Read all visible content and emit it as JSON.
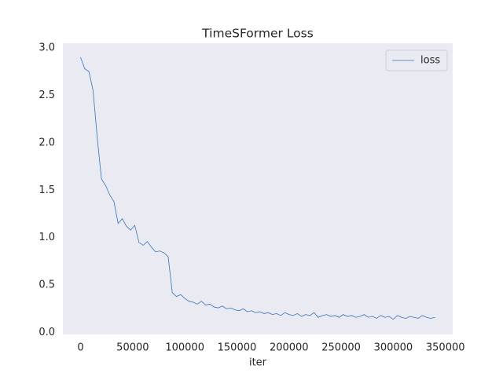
{
  "chart_data": {
    "type": "line",
    "title": "TimeSFormer Loss",
    "xlabel": "iter",
    "x": [
      0,
      4000,
      8000,
      12000,
      16000,
      20000,
      24000,
      28000,
      32000,
      36000,
      40000,
      44000,
      48000,
      52000,
      56000,
      60000,
      64000,
      68000,
      72000,
      76000,
      80000,
      84000,
      88000,
      92000,
      96000,
      100000,
      104000,
      108000,
      112000,
      116000,
      120000,
      124000,
      128000,
      132000,
      136000,
      140000,
      144000,
      148000,
      152000,
      156000,
      160000,
      164000,
      168000,
      172000,
      176000,
      180000,
      184000,
      188000,
      192000,
      196000,
      200000,
      204000,
      208000,
      212000,
      216000,
      220000,
      224000,
      228000,
      232000,
      236000,
      240000,
      244000,
      248000,
      252000,
      256000,
      260000,
      264000,
      268000,
      272000,
      276000,
      280000,
      284000,
      288000,
      292000,
      296000,
      300000,
      304000,
      308000,
      312000,
      316000,
      320000,
      324000,
      328000,
      332000,
      336000,
      340000
    ],
    "series": [
      {
        "name": "loss",
        "color": "#3274b8",
        "values": [
          2.9,
          2.78,
          2.75,
          2.55,
          2.05,
          1.62,
          1.55,
          1.45,
          1.38,
          1.15,
          1.2,
          1.12,
          1.08,
          1.13,
          0.95,
          0.92,
          0.96,
          0.9,
          0.85,
          0.86,
          0.84,
          0.8,
          0.42,
          0.38,
          0.4,
          0.36,
          0.33,
          0.32,
          0.3,
          0.33,
          0.29,
          0.3,
          0.27,
          0.26,
          0.28,
          0.25,
          0.26,
          0.24,
          0.23,
          0.25,
          0.22,
          0.23,
          0.21,
          0.22,
          0.2,
          0.21,
          0.19,
          0.2,
          0.18,
          0.21,
          0.19,
          0.18,
          0.2,
          0.17,
          0.19,
          0.18,
          0.21,
          0.16,
          0.18,
          0.19,
          0.17,
          0.18,
          0.16,
          0.19,
          0.17,
          0.18,
          0.16,
          0.17,
          0.19,
          0.16,
          0.17,
          0.15,
          0.18,
          0.16,
          0.17,
          0.14,
          0.18,
          0.16,
          0.15,
          0.17,
          0.16,
          0.15,
          0.18,
          0.16,
          0.15,
          0.16
        ]
      }
    ],
    "xlim": [
      -17000,
      357000
    ],
    "ylim": [
      -0.02,
      3.05
    ],
    "xticks": [
      0,
      50000,
      100000,
      150000,
      200000,
      250000,
      300000,
      350000
    ],
    "yticks": [
      {
        "value": 0,
        "label": "0.0"
      },
      0.5,
      {
        "value": 1,
        "label": "1.0"
      },
      1.5,
      {
        "value": 2,
        "label": "2.0"
      },
      2.5,
      {
        "value": 3,
        "label": "3.0"
      }
    ],
    "grid": false,
    "legend": "upper right",
    "background": "#eaeaf2"
  }
}
